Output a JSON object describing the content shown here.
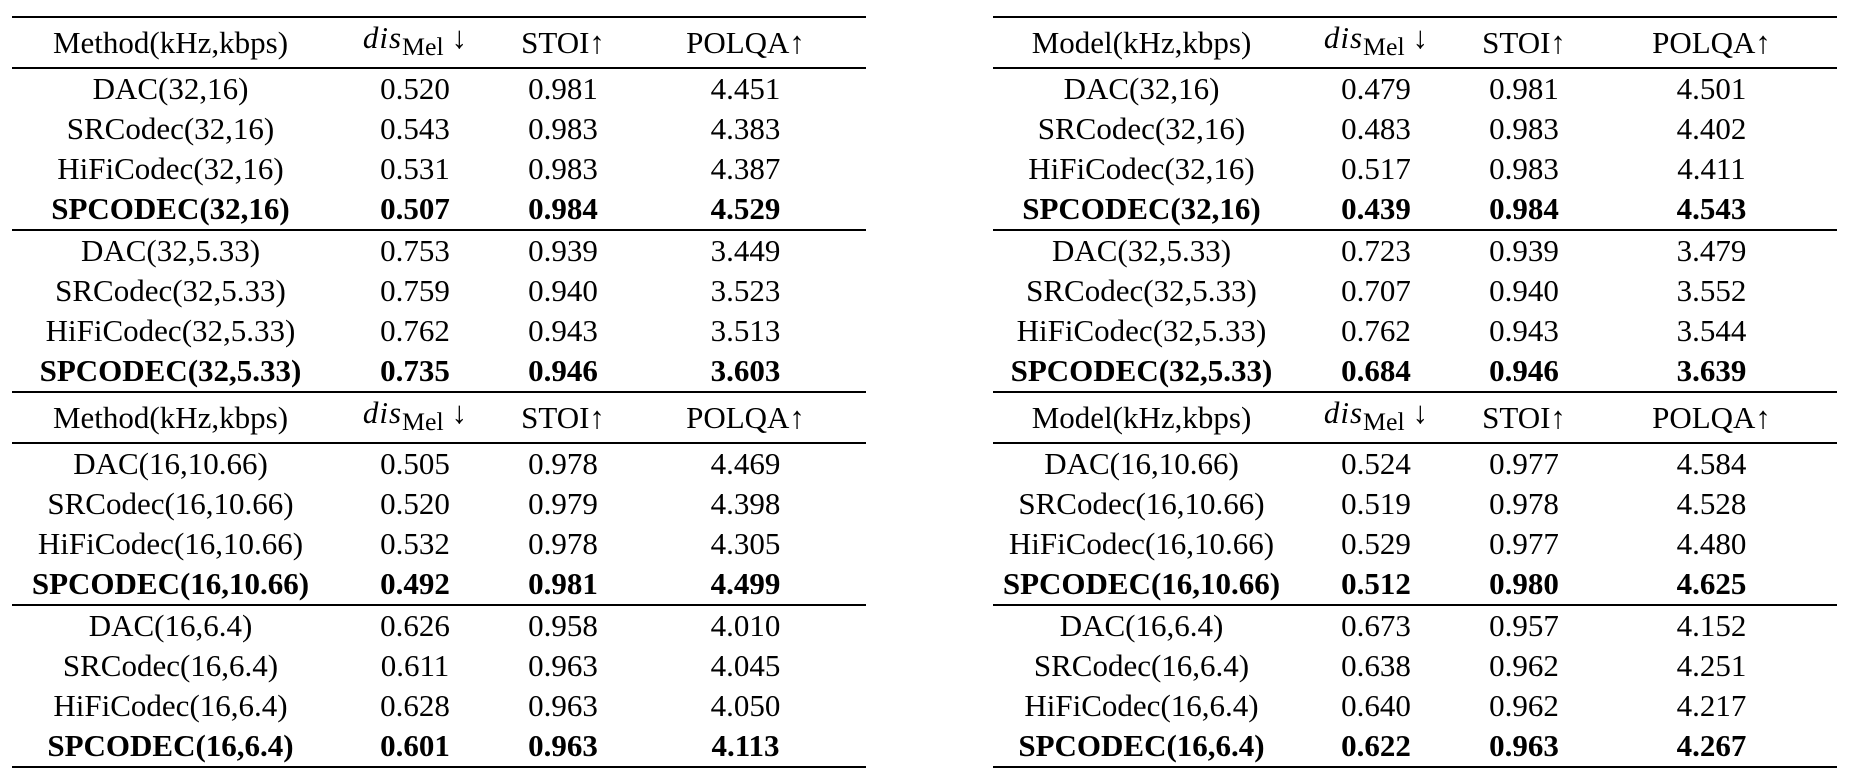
{
  "tables": [
    {
      "sections": [
        {
          "header": [
            "Method(kHz,kbps)",
            "dis",
            "Mel",
            "↓",
            "STOI↑",
            "POLQA↑"
          ],
          "groups": [
            [
              [
                "DAC(32,16)",
                "0.520",
                "0.981",
                "4.451"
              ],
              [
                "SRCodec(32,16)",
                "0.543",
                "0.983",
                "4.383"
              ],
              [
                "HiFiCodec(32,16)",
                "0.531",
                "0.983",
                "4.387"
              ],
              [
                "SPCODEC(32,16)",
                "0.507",
                "0.984",
                "4.529"
              ]
            ],
            [
              [
                "DAC(32,5.33)",
                "0.753",
                "0.939",
                "3.449"
              ],
              [
                "SRCodec(32,5.33)",
                "0.759",
                "0.940",
                "3.523"
              ],
              [
                "HiFiCodec(32,5.33)",
                "0.762",
                "0.943",
                "3.513"
              ],
              [
                "SPCODEC(32,5.33)",
                "0.735",
                "0.946",
                "3.603"
              ]
            ]
          ]
        },
        {
          "header": [
            "Method(kHz,kbps)",
            "dis",
            "Mel",
            "↓",
            "STOI↑",
            "POLQA↑"
          ],
          "groups": [
            [
              [
                "DAC(16,10.66)",
                "0.505",
                "0.978",
                "4.469"
              ],
              [
                "SRCodec(16,10.66)",
                "0.520",
                "0.979",
                "4.398"
              ],
              [
                "HiFiCodec(16,10.66)",
                "0.532",
                "0.978",
                "4.305"
              ],
              [
                "SPCODEC(16,10.66)",
                "0.492",
                "0.981",
                "4.499"
              ]
            ],
            [
              [
                "DAC(16,6.4)",
                "0.626",
                "0.958",
                "4.010"
              ],
              [
                "SRCodec(16,6.4)",
                "0.611",
                "0.963",
                "4.045"
              ],
              [
                "HiFiCodec(16,6.4)",
                "0.628",
                "0.963",
                "4.050"
              ],
              [
                "SPCODEC(16,6.4)",
                "0.601",
                "0.963",
                "4.113"
              ]
            ]
          ]
        }
      ]
    },
    {
      "sections": [
        {
          "header": [
            "Model(kHz,kbps)",
            "dis",
            "Mel",
            "↓",
            "STOI↑",
            "POLQA↑"
          ],
          "groups": [
            [
              [
                "DAC(32,16)",
                "0.479",
                "0.981",
                "4.501"
              ],
              [
                "SRCodec(32,16)",
                "0.483",
                "0.983",
                "4.402"
              ],
              [
                "HiFiCodec(32,16)",
                "0.517",
                "0.983",
                "4.411"
              ],
              [
                "SPCODEC(32,16)",
                "0.439",
                "0.984",
                "4.543"
              ]
            ],
            [
              [
                "DAC(32,5.33)",
                "0.723",
                "0.939",
                "3.479"
              ],
              [
                "SRCodec(32,5.33)",
                "0.707",
                "0.940",
                "3.552"
              ],
              [
                "HiFiCodec(32,5.33)",
                "0.762",
                "0.943",
                "3.544"
              ],
              [
                "SPCODEC(32,5.33)",
                "0.684",
                "0.946",
                "3.639"
              ]
            ]
          ]
        },
        {
          "header": [
            "Model(kHz,kbps)",
            "dis",
            "Mel",
            "↓",
            "STOI↑",
            "POLQA↑"
          ],
          "groups": [
            [
              [
                "DAC(16,10.66)",
                "0.524",
                "0.977",
                "4.584"
              ],
              [
                "SRCodec(16,10.66)",
                "0.519",
                "0.978",
                "4.528"
              ],
              [
                "HiFiCodec(16,10.66)",
                "0.529",
                "0.977",
                "4.480"
              ],
              [
                "SPCODEC(16,10.66)",
                "0.512",
                "0.980",
                "4.625"
              ]
            ],
            [
              [
                "DAC(16,6.4)",
                "0.673",
                "0.957",
                "4.152"
              ],
              [
                "SRCodec(16,6.4)",
                "0.638",
                "0.962",
                "4.251"
              ],
              [
                "HiFiCodec(16,6.4)",
                "0.640",
                "0.962",
                "4.217"
              ],
              [
                "SPCODEC(16,6.4)",
                "0.622",
                "0.963",
                "4.267"
              ]
            ]
          ]
        }
      ]
    }
  ]
}
